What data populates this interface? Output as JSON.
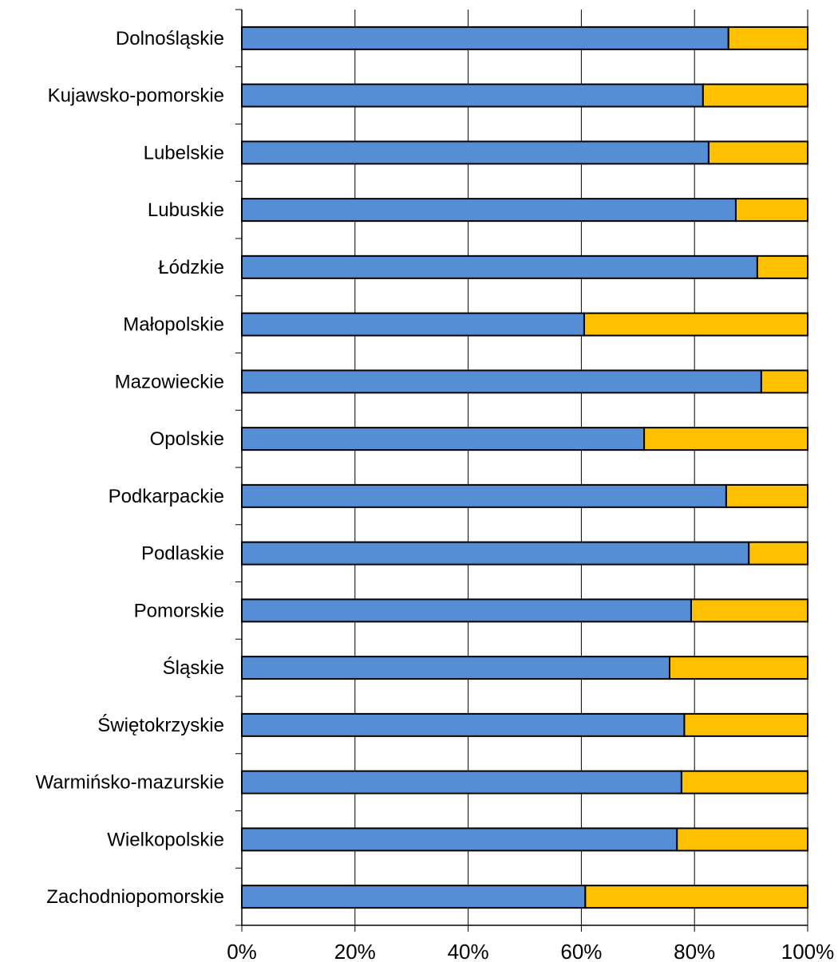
{
  "chart_data": {
    "type": "bar",
    "orientation": "horizontal",
    "stacked": "percent",
    "title": "",
    "xlabel": "",
    "ylabel": "",
    "xlim": [
      0,
      100
    ],
    "x_ticks": [
      "0%",
      "20%",
      "40%",
      "60%",
      "80%",
      "100%"
    ],
    "grid": "vertical",
    "legend": "none",
    "categories": [
      "Dolnośląskie",
      "Kujawsko-pomorskie",
      "Lubelskie",
      "Lubuskie",
      "Łódzkie",
      "Małopolskie",
      "Mazowieckie",
      "Opolskie",
      "Podkarpackie",
      "Podlaskie",
      "Pomorskie",
      "Śląskie",
      "Świętokrzyskie",
      "Warmińsko-mazurskie",
      "Wielkopolskie",
      "Zachodniopomorskie"
    ],
    "series": [
      {
        "color": "#558ED5",
        "values": [
          86,
          81.5,
          82.5,
          87.3,
          91.1,
          60.5,
          91.8,
          71.1,
          85.6,
          89.6,
          79.4,
          75.6,
          78.2,
          77.7,
          76.9,
          60.7
        ]
      },
      {
        "color": "#FFC000",
        "values": [
          14,
          18.5,
          17.5,
          12.7,
          8.9,
          39.5,
          8.2,
          28.9,
          14.4,
          10.4,
          20.6,
          24.4,
          21.8,
          22.3,
          23.1,
          39.3
        ]
      }
    ]
  }
}
